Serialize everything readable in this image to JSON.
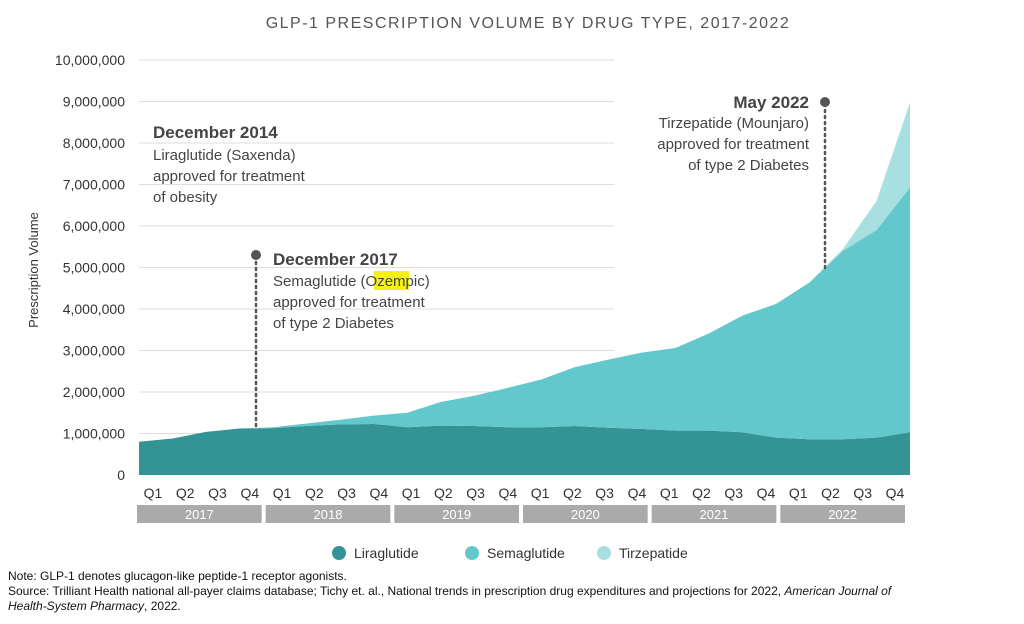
{
  "title": "GLP-1 PRESCRIPTION VOLUME BY DRUG TYPE, 2017-2022",
  "colors": {
    "liraglutide": "#349394",
    "semaglutide": "#62c8cb",
    "tirzepatide": "#a8dfe1",
    "grid": "#dddddd",
    "year_band": "#aaaaaa"
  },
  "chart_data": {
    "type": "area",
    "stacked": true,
    "title": "GLP-1 PRESCRIPTION VOLUME BY DRUG TYPE, 2017-2022",
    "ylabel": "Prescription Volume",
    "ylim": [
      0,
      10000000
    ],
    "yticks": [
      "0",
      "1,000,000",
      "2,000,000",
      "3,000,000",
      "4,000,000",
      "5,000,000",
      "6,000,000",
      "7,000,000",
      "8,000,000",
      "9,000,000",
      "10,000,000"
    ],
    "quarters": [
      "Q1",
      "Q2",
      "Q3",
      "Q4",
      "Q1",
      "Q2",
      "Q3",
      "Q4",
      "Q1",
      "Q2",
      "Q3",
      "Q4",
      "Q1",
      "Q2",
      "Q3",
      "Q4",
      "Q1",
      "Q2",
      "Q3",
      "Q4",
      "Q1",
      "Q2",
      "Q3",
      "Q4"
    ],
    "years": [
      "2017",
      "2018",
      "2019",
      "2020",
      "2021",
      "2022"
    ],
    "grid": true,
    "legend_position": "bottom",
    "series": [
      {
        "name": "Liraglutide",
        "key": "liraglutide",
        "values": [
          800000,
          880000,
          1040000,
          1120000,
          1130000,
          1180000,
          1220000,
          1230000,
          1150000,
          1190000,
          1180000,
          1150000,
          1150000,
          1180000,
          1140000,
          1110000,
          1070000,
          1070000,
          1030000,
          900000,
          860000,
          860000,
          900000,
          1030000
        ]
      },
      {
        "name": "Semaglutide",
        "key": "semaglutide",
        "values": [
          0,
          0,
          0,
          0,
          20000,
          60000,
          110000,
          200000,
          350000,
          570000,
          730000,
          950000,
          1150000,
          1420000,
          1640000,
          1840000,
          1990000,
          2340000,
          2810000,
          3220000,
          3780000,
          4540000,
          5000000,
          5900000
        ]
      },
      {
        "name": "Tirzepatide",
        "key": "tirzepatide",
        "values": [
          0,
          0,
          0,
          0,
          0,
          0,
          0,
          0,
          0,
          0,
          0,
          0,
          0,
          0,
          0,
          0,
          0,
          0,
          0,
          0,
          0,
          50000,
          700000,
          2050000
        ]
      }
    ],
    "annotations": [
      {
        "heading": "December 2014",
        "lines": [
          "Liraglutide (Saxenda)",
          "approved for treatment",
          "of obesity"
        ]
      },
      {
        "heading": "December 2017",
        "lines_rich": [
          [
            "Semaglutide (",
            "Oze",
            "mpic)"
          ],
          [
            "approved for treatment"
          ],
          [
            "of type 2 Diabetes"
          ]
        ]
      },
      {
        "heading": "May 2022",
        "lines": [
          "Tirzepatide (Mounjaro)",
          "approved for treatment",
          "of type 2 Diabetes"
        ]
      }
    ]
  },
  "notes": {
    "note": "Note: GLP-1 denotes glucagon-like peptide-1 receptor agonists.",
    "source_prefix": "Source: Trilliant Health national all-payer claims database; Tichy et. al., National trends in prescription drug expenditures and projections for 2022, ",
    "source_journal": "American Journal of Health-System Pharmacy",
    "source_suffix": ", 2022."
  }
}
